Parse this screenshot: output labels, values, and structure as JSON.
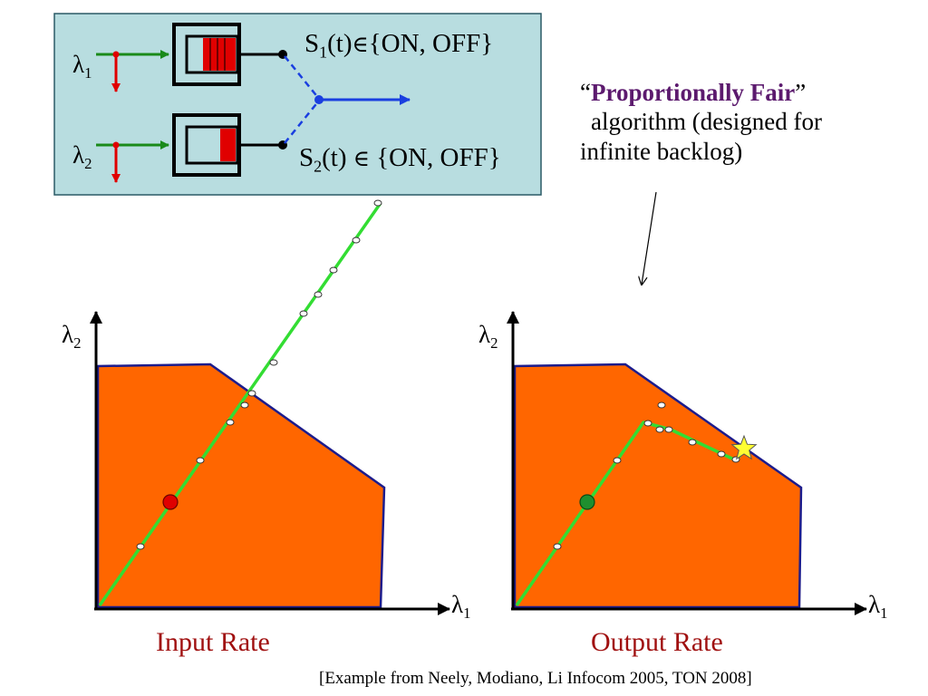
{
  "top_diagram": {
    "s1": {
      "prefix": "S",
      "sub": "1",
      "rest": "(t)",
      "member": "∈",
      "set": "{ON, OFF}"
    },
    "s2": {
      "prefix": "S",
      "sub": "2",
      "rest": "(t)",
      "member": "∈",
      "set": "{ON, OFF}"
    },
    "lambda1": {
      "sym": "λ",
      "sub": "1"
    },
    "lambda2": {
      "sym": "λ",
      "sub": "2"
    }
  },
  "annotation": {
    "open_quote": "“",
    "bold": "Proportionally Fair",
    "close_quote": "”",
    "line2": "algorithm (designed for",
    "line3": "infinite backlog)"
  },
  "plots": {
    "left": {
      "y_axis": {
        "sym": "λ",
        "sub": "2"
      },
      "x_axis": {
        "sym": "λ",
        "sub": "1"
      },
      "caption": "Input Rate"
    },
    "right": {
      "y_axis": {
        "sym": "λ",
        "sub": "2"
      },
      "x_axis": {
        "sym": "λ",
        "sub": "1"
      },
      "caption": "Output Rate"
    }
  },
  "citation": "[Example from Neely, Modiano, Li Infocom 2005, TON 2008]",
  "colors": {
    "region_fill": "#ff6600",
    "region_stroke": "#1c1c8c",
    "trajectory": "#33dd33",
    "top_panel": "#b8dde0",
    "server_queue": "#e00000",
    "arrival_arrow": "#1a8a1a",
    "departure_arrow": "#e00000",
    "switch_line": "#1a3fe0",
    "input_point": "#e00000",
    "output_point": "#1f8f2f",
    "star": "#ffff33",
    "caption": "#a01010",
    "bold_text": "#5c1a6e"
  }
}
